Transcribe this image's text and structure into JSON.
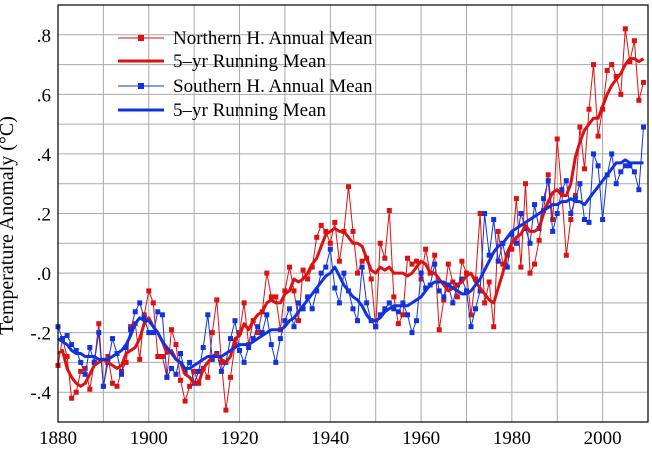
{
  "chart_data": {
    "type": "line",
    "ylabel": "Temperature Anomaly (°C)",
    "xlim": [
      1880,
      2010
    ],
    "ylim": [
      -0.5,
      0.9
    ],
    "grid": true,
    "legend_position": "top-left",
    "x_ticks": [
      1880,
      1900,
      1920,
      1940,
      1960,
      1980,
      2000
    ],
    "x_tick_labels": [
      "1880",
      "1900",
      "1920",
      "1940",
      "1960",
      "1980",
      "2000"
    ],
    "y_ticks": [
      -0.4,
      -0.2,
      0.0,
      0.2,
      0.4,
      0.6,
      0.8
    ],
    "y_tick_labels": [
      "-.4",
      "-.2",
      ".0",
      ".2",
      ".4",
      ".6",
      ".8"
    ],
    "colors": {
      "north": "#dd1111",
      "south": "#1133dd",
      "grid": "#aaaaaa"
    },
    "x": [
      1880,
      1881,
      1882,
      1883,
      1884,
      1885,
      1886,
      1887,
      1888,
      1889,
      1890,
      1891,
      1892,
      1893,
      1894,
      1895,
      1896,
      1897,
      1898,
      1899,
      1900,
      1901,
      1902,
      1903,
      1904,
      1905,
      1906,
      1907,
      1908,
      1909,
      1910,
      1911,
      1912,
      1913,
      1914,
      1915,
      1916,
      1917,
      1918,
      1919,
      1920,
      1921,
      1922,
      1923,
      1924,
      1925,
      1926,
      1927,
      1928,
      1929,
      1930,
      1931,
      1932,
      1933,
      1934,
      1935,
      1936,
      1937,
      1938,
      1939,
      1940,
      1941,
      1942,
      1943,
      1944,
      1945,
      1946,
      1947,
      1948,
      1949,
      1950,
      1951,
      1952,
      1953,
      1954,
      1955,
      1956,
      1957,
      1958,
      1959,
      1960,
      1961,
      1962,
      1963,
      1964,
      1965,
      1966,
      1967,
      1968,
      1969,
      1970,
      1971,
      1972,
      1973,
      1974,
      1975,
      1976,
      1977,
      1978,
      1979,
      1980,
      1981,
      1982,
      1983,
      1984,
      1985,
      1986,
      1987,
      1988,
      1989,
      1990,
      1991,
      1992,
      1993,
      1994,
      1995,
      1996,
      1997,
      1998,
      1999,
      2000,
      2001,
      2002,
      2003,
      2004,
      2005,
      2006,
      2007,
      2008,
      2009
    ],
    "series": [
      {
        "name": "Northern H. Annual Mean",
        "style": "line-square-markers",
        "color": "#dd1111",
        "values": [
          -0.31,
          -0.22,
          -0.28,
          -0.42,
          -0.4,
          -0.33,
          -0.32,
          -0.39,
          -0.3,
          -0.17,
          -0.38,
          -0.28,
          -0.37,
          -0.38,
          -0.33,
          -0.3,
          -0.18,
          -0.17,
          -0.29,
          -0.14,
          -0.06,
          -0.1,
          -0.28,
          -0.28,
          -0.35,
          -0.19,
          -0.24,
          -0.36,
          -0.43,
          -0.38,
          -0.33,
          -0.37,
          -0.32,
          -0.35,
          -0.2,
          -0.09,
          -0.3,
          -0.46,
          -0.35,
          -0.24,
          -0.2,
          -0.1,
          -0.24,
          -0.16,
          -0.2,
          -0.13,
          0.0,
          -0.08,
          -0.08,
          -0.19,
          -0.06,
          0.02,
          -0.06,
          -0.16,
          0.01,
          -0.02,
          0.02,
          0.12,
          0.16,
          0.14,
          0.1,
          0.17,
          0.04,
          0.14,
          0.29,
          0.14,
          0.0,
          0.04,
          0.05,
          -0.02,
          -0.18,
          0.1,
          0.05,
          0.21,
          -0.08,
          -0.17,
          -0.14,
          0.05,
          0.03,
          0.04,
          -0.02,
          0.08,
          0.0,
          0.06,
          -0.19,
          -0.09,
          0.03,
          -0.03,
          -0.08,
          0.04,
          0.0,
          -0.14,
          -0.02,
          0.2,
          -0.1,
          -0.03,
          -0.18,
          0.14,
          0.03,
          0.06,
          0.08,
          0.25,
          0.02,
          0.3,
          0.0,
          0.03,
          0.11,
          0.21,
          0.33,
          0.18,
          0.45,
          0.27,
          0.06,
          0.18,
          0.26,
          0.49,
          0.35,
          0.55,
          0.7,
          0.46,
          0.55,
          0.68,
          0.7,
          0.66,
          0.6,
          0.82,
          0.71,
          0.78,
          0.58,
          0.64
        ]
      },
      {
        "name": "5–yr Running Mean",
        "style": "line-thick",
        "color": "#dd1111",
        "values": [
          -0.27,
          -0.26,
          -0.32,
          -0.35,
          -0.37,
          -0.38,
          -0.37,
          -0.34,
          -0.31,
          -0.3,
          -0.29,
          -0.3,
          -0.31,
          -0.32,
          -0.31,
          -0.27,
          -0.26,
          -0.25,
          -0.22,
          -0.17,
          -0.15,
          -0.18,
          -0.2,
          -0.23,
          -0.27,
          -0.26,
          -0.29,
          -0.3,
          -0.34,
          -0.35,
          -0.37,
          -0.37,
          -0.32,
          -0.3,
          -0.28,
          -0.27,
          -0.29,
          -0.3,
          -0.28,
          -0.22,
          -0.21,
          -0.17,
          -0.19,
          -0.16,
          -0.14,
          -0.13,
          -0.1,
          -0.09,
          -0.1,
          -0.1,
          -0.07,
          -0.06,
          -0.02,
          -0.03,
          -0.02,
          0.0,
          0.03,
          0.05,
          0.09,
          0.13,
          0.14,
          0.15,
          0.14,
          0.14,
          0.12,
          0.1,
          0.1,
          0.09,
          0.05,
          0.01,
          0.0,
          0.02,
          0.01,
          0.02,
          0.0,
          0.0,
          0.0,
          -0.01,
          0.0,
          0.02,
          0.04,
          0.03,
          0.0,
          0.0,
          -0.02,
          -0.04,
          -0.06,
          -0.05,
          -0.04,
          -0.03,
          -0.01,
          0.0,
          -0.03,
          -0.05,
          -0.07,
          -0.09,
          -0.1,
          -0.05,
          0.0,
          0.07,
          0.1,
          0.12,
          0.13,
          0.16,
          0.14,
          0.14,
          0.15,
          0.2,
          0.24,
          0.27,
          0.28,
          0.26,
          0.26,
          0.3,
          0.39,
          0.44,
          0.48,
          0.5,
          0.52,
          0.52,
          0.56,
          0.6,
          0.63,
          0.65,
          0.67,
          0.7,
          0.72,
          0.72,
          0.71,
          0.72
        ]
      },
      {
        "name": "Southern H. Annual Mean",
        "style": "line-square-markers",
        "color": "#1133dd",
        "values": [
          -0.18,
          -0.22,
          -0.21,
          -0.24,
          -0.26,
          -0.3,
          -0.34,
          -0.25,
          -0.3,
          -0.2,
          -0.38,
          -0.3,
          -0.22,
          -0.27,
          -0.34,
          -0.25,
          -0.19,
          -0.13,
          -0.1,
          -0.15,
          -0.2,
          -0.2,
          -0.13,
          -0.14,
          -0.35,
          -0.32,
          -0.34,
          -0.27,
          -0.33,
          -0.3,
          -0.37,
          -0.33,
          -0.25,
          -0.14,
          -0.29,
          -0.27,
          -0.33,
          -0.3,
          -0.22,
          -0.16,
          -0.26,
          -0.3,
          -0.25,
          -0.22,
          -0.18,
          -0.2,
          -0.14,
          -0.24,
          -0.3,
          -0.22,
          -0.16,
          -0.12,
          -0.18,
          -0.1,
          -0.12,
          -0.08,
          -0.12,
          -0.06,
          0.0,
          0.02,
          0.08,
          -0.05,
          -0.1,
          0.0,
          -0.06,
          -0.12,
          -0.16,
          0.02,
          -0.1,
          -0.16,
          -0.18,
          -0.14,
          -0.12,
          -0.1,
          -0.12,
          -0.13,
          -0.1,
          -0.14,
          -0.2,
          -0.16,
          0.0,
          -0.05,
          -0.04,
          0.03,
          -0.06,
          -0.08,
          -0.04,
          -0.1,
          -0.04,
          -0.02,
          -0.06,
          -0.18,
          -0.12,
          -0.06,
          0.2,
          0.06,
          0.18,
          0.04,
          0.1,
          0.02,
          0.13,
          0.1,
          0.2,
          0.15,
          0.1,
          0.23,
          0.15,
          0.25,
          0.31,
          0.14,
          0.2,
          0.28,
          0.31,
          0.2,
          0.25,
          0.3,
          0.18,
          0.17,
          0.4,
          0.36,
          0.18,
          0.33,
          0.4,
          0.3,
          0.34,
          0.36,
          0.36,
          0.34,
          0.28,
          0.49
        ]
      },
      {
        "name": "5–yr Running Mean",
        "style": "line-thick",
        "color": "#1133dd",
        "values": [
          -0.22,
          -0.23,
          -0.24,
          -0.26,
          -0.27,
          -0.27,
          -0.28,
          -0.28,
          -0.28,
          -0.29,
          -0.29,
          -0.29,
          -0.28,
          -0.27,
          -0.26,
          -0.24,
          -0.21,
          -0.17,
          -0.15,
          -0.16,
          -0.16,
          -0.18,
          -0.2,
          -0.23,
          -0.25,
          -0.27,
          -0.29,
          -0.3,
          -0.32,
          -0.32,
          -0.31,
          -0.3,
          -0.29,
          -0.28,
          -0.28,
          -0.28,
          -0.28,
          -0.27,
          -0.26,
          -0.25,
          -0.24,
          -0.24,
          -0.24,
          -0.23,
          -0.22,
          -0.21,
          -0.2,
          -0.19,
          -0.19,
          -0.19,
          -0.18,
          -0.16,
          -0.15,
          -0.13,
          -0.11,
          -0.09,
          -0.07,
          -0.05,
          -0.03,
          -0.01,
          0.0,
          0.02,
          -0.01,
          -0.04,
          -0.06,
          -0.08,
          -0.09,
          -0.11,
          -0.14,
          -0.16,
          -0.16,
          -0.15,
          -0.13,
          -0.12,
          -0.11,
          -0.11,
          -0.11,
          -0.11,
          -0.1,
          -0.09,
          -0.08,
          -0.06,
          -0.04,
          -0.03,
          -0.03,
          -0.03,
          -0.04,
          -0.05,
          -0.06,
          -0.07,
          -0.07,
          -0.06,
          -0.04,
          -0.02,
          0.01,
          0.04,
          0.07,
          0.09,
          0.1,
          0.12,
          0.14,
          0.15,
          0.16,
          0.17,
          0.18,
          0.19,
          0.2,
          0.21,
          0.22,
          0.23,
          0.23,
          0.24,
          0.24,
          0.25,
          0.24,
          0.24,
          0.23,
          0.25,
          0.27,
          0.29,
          0.31,
          0.33,
          0.35,
          0.37,
          0.37,
          0.38,
          0.37,
          0.37,
          0.37,
          0.37
        ]
      }
    ]
  }
}
